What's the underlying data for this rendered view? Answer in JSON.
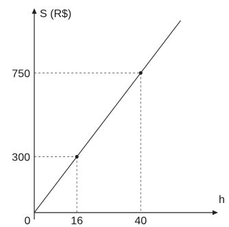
{
  "chart_data": {
    "type": "line",
    "title": "",
    "ylabel": "S (R$)",
    "xlabel": "h",
    "origin_label": "0",
    "x_ticks": [
      {
        "value": 16,
        "label": "16"
      },
      {
        "value": 40,
        "label": "40"
      }
    ],
    "y_ticks": [
      {
        "value": 300,
        "label": "300"
      },
      {
        "value": 750,
        "label": "750"
      }
    ],
    "series": [
      {
        "points": [
          {
            "x": 0,
            "y": 0
          },
          {
            "x": 16,
            "y": 300
          },
          {
            "x": 40,
            "y": 750
          }
        ]
      }
    ],
    "highlighted_points": [
      {
        "x": 16,
        "y": 300
      },
      {
        "x": 40,
        "y": 750
      }
    ],
    "line_extends_to_x": 55,
    "xlim": [
      0,
      67
    ],
    "ylim": [
      0,
      1090
    ],
    "grid": false,
    "guide_lines": "dashed",
    "line_color": "#333333",
    "axis_color": "#222222"
  }
}
